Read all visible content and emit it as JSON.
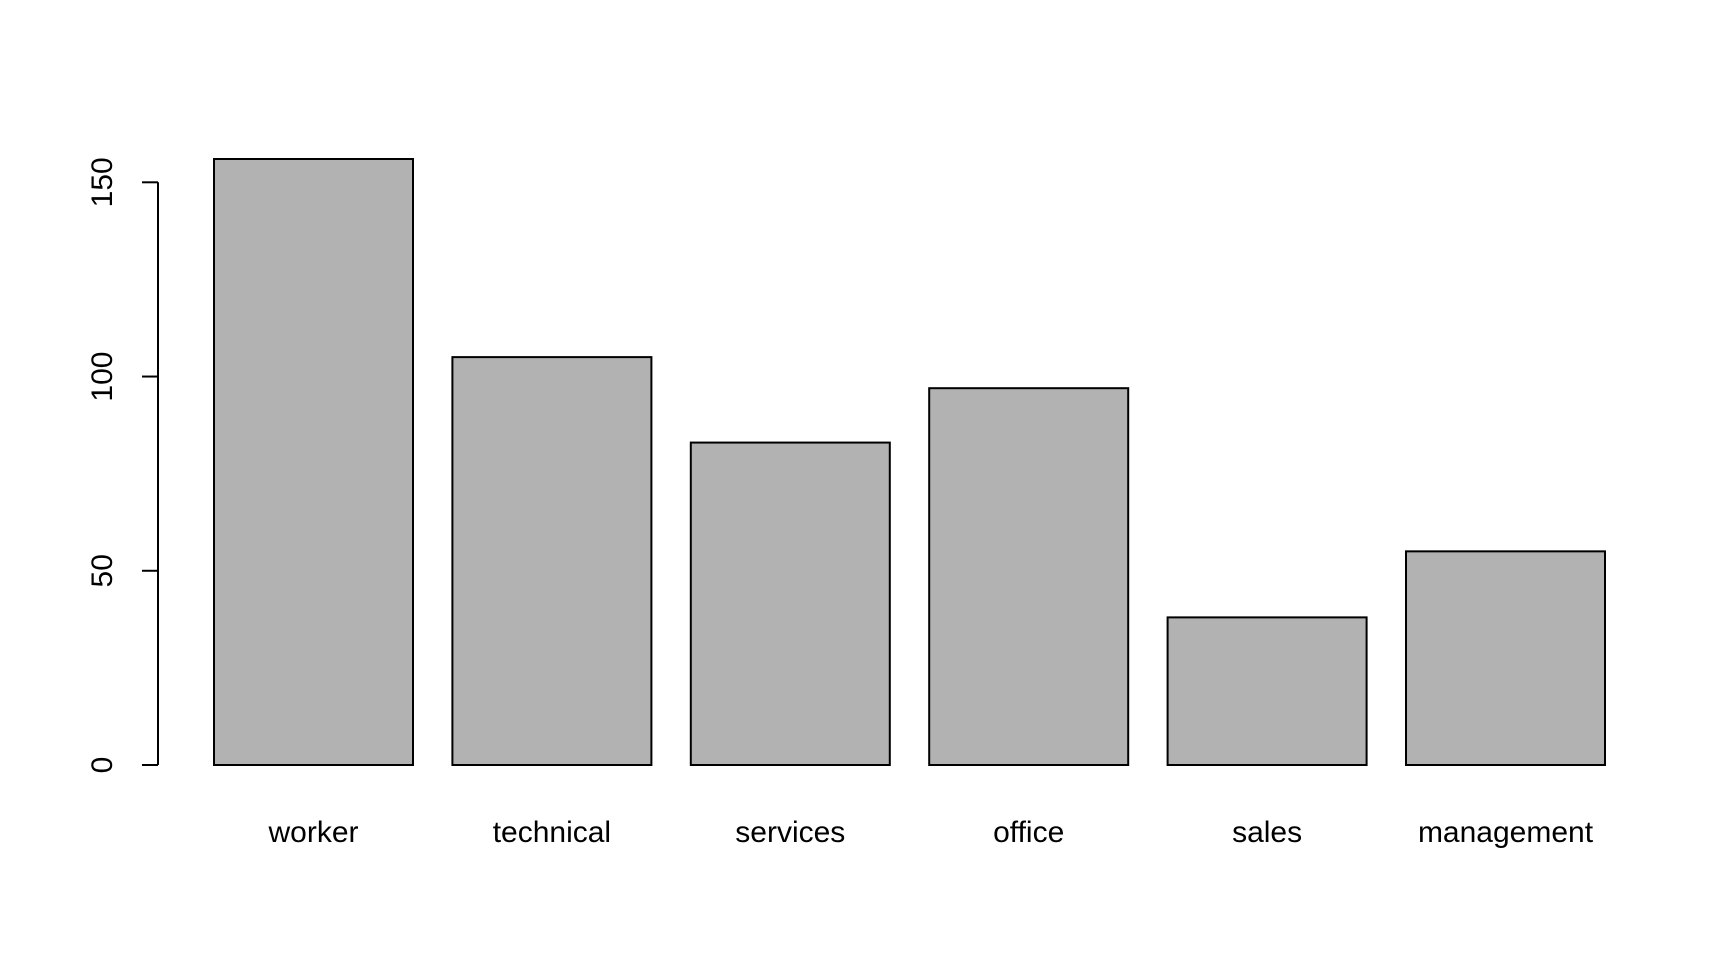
{
  "chart_data": {
    "type": "bar",
    "title": "",
    "xlabel": "",
    "ylabel": "",
    "categories": [
      "worker",
      "technical",
      "services",
      "office",
      "sales",
      "management"
    ],
    "values": [
      156,
      105,
      83,
      97,
      38,
      55
    ],
    "ylim": [
      0,
      156
    ],
    "yticks": [
      0,
      50,
      100,
      150
    ],
    "ytick_labels": [
      "0",
      "50",
      "100",
      "150"
    ],
    "grid": false,
    "legend": "none",
    "colors": {
      "bar_fill": "#b2b2b2",
      "bar_stroke": "#000000",
      "axis": "#000000"
    }
  }
}
